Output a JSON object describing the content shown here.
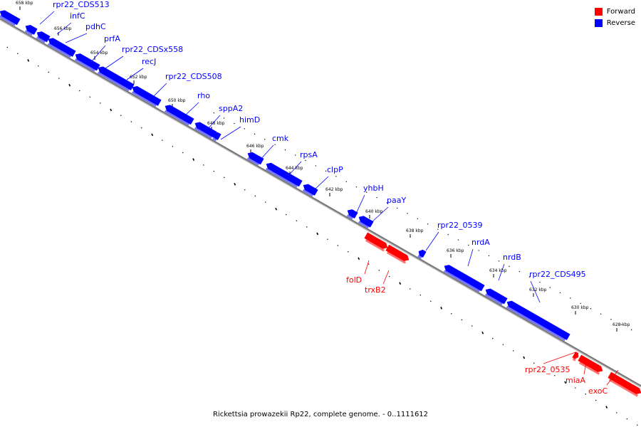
{
  "legend": {
    "forward_label": "Forward",
    "reverse_label": "Reverse",
    "forward_color": "#ff0000",
    "reverse_color": "#0000ff"
  },
  "caption": "Rickettsia prowazekii Rp22, complete genome. - 0..1111612",
  "colors": {
    "forward": "#ff0000",
    "reverse": "#0000ff",
    "backbone": "#777777"
  },
  "scale_ticks": [
    "658 kbp",
    "656 kbp",
    "654 kbp",
    "652 kbp",
    "650 kbp",
    "648 kbp",
    "646 kbp",
    "644 kbp",
    "642 kbp",
    "640 kbp",
    "638 kbp",
    "636 kbp",
    "634 kbp",
    "632 kbp",
    "630 kbp",
    "628 kbp"
  ],
  "genes": [
    {
      "name": "rpr22_CDS513",
      "strand": "reverse"
    },
    {
      "name": "infC",
      "strand": "reverse"
    },
    {
      "name": "pdhC",
      "strand": "reverse"
    },
    {
      "name": "prfA",
      "strand": "reverse"
    },
    {
      "name": "rpr22_CDSx558",
      "strand": "reverse"
    },
    {
      "name": "recJ",
      "strand": "reverse"
    },
    {
      "name": "rpr22_CDS508",
      "strand": "reverse"
    },
    {
      "name": "rho",
      "strand": "reverse"
    },
    {
      "name": "sppA2",
      "strand": "reverse"
    },
    {
      "name": "himD",
      "strand": "reverse"
    },
    {
      "name": "cmk",
      "strand": "reverse"
    },
    {
      "name": "rpsA",
      "strand": "reverse"
    },
    {
      "name": "clpP",
      "strand": "reverse"
    },
    {
      "name": "yhbH",
      "strand": "reverse"
    },
    {
      "name": "paaY",
      "strand": "reverse"
    },
    {
      "name": "rpr22_0539",
      "strand": "reverse"
    },
    {
      "name": "nrdA",
      "strand": "reverse"
    },
    {
      "name": "nrdB",
      "strand": "reverse"
    },
    {
      "name": "rpr22_CDS495",
      "strand": "reverse"
    },
    {
      "name": "folD",
      "strand": "forward"
    },
    {
      "name": "trxB2",
      "strand": "forward"
    },
    {
      "name": "rpr22_0535",
      "strand": "forward"
    },
    {
      "name": "miaA",
      "strand": "forward"
    },
    {
      "name": "exoC",
      "strand": "forward"
    }
  ]
}
